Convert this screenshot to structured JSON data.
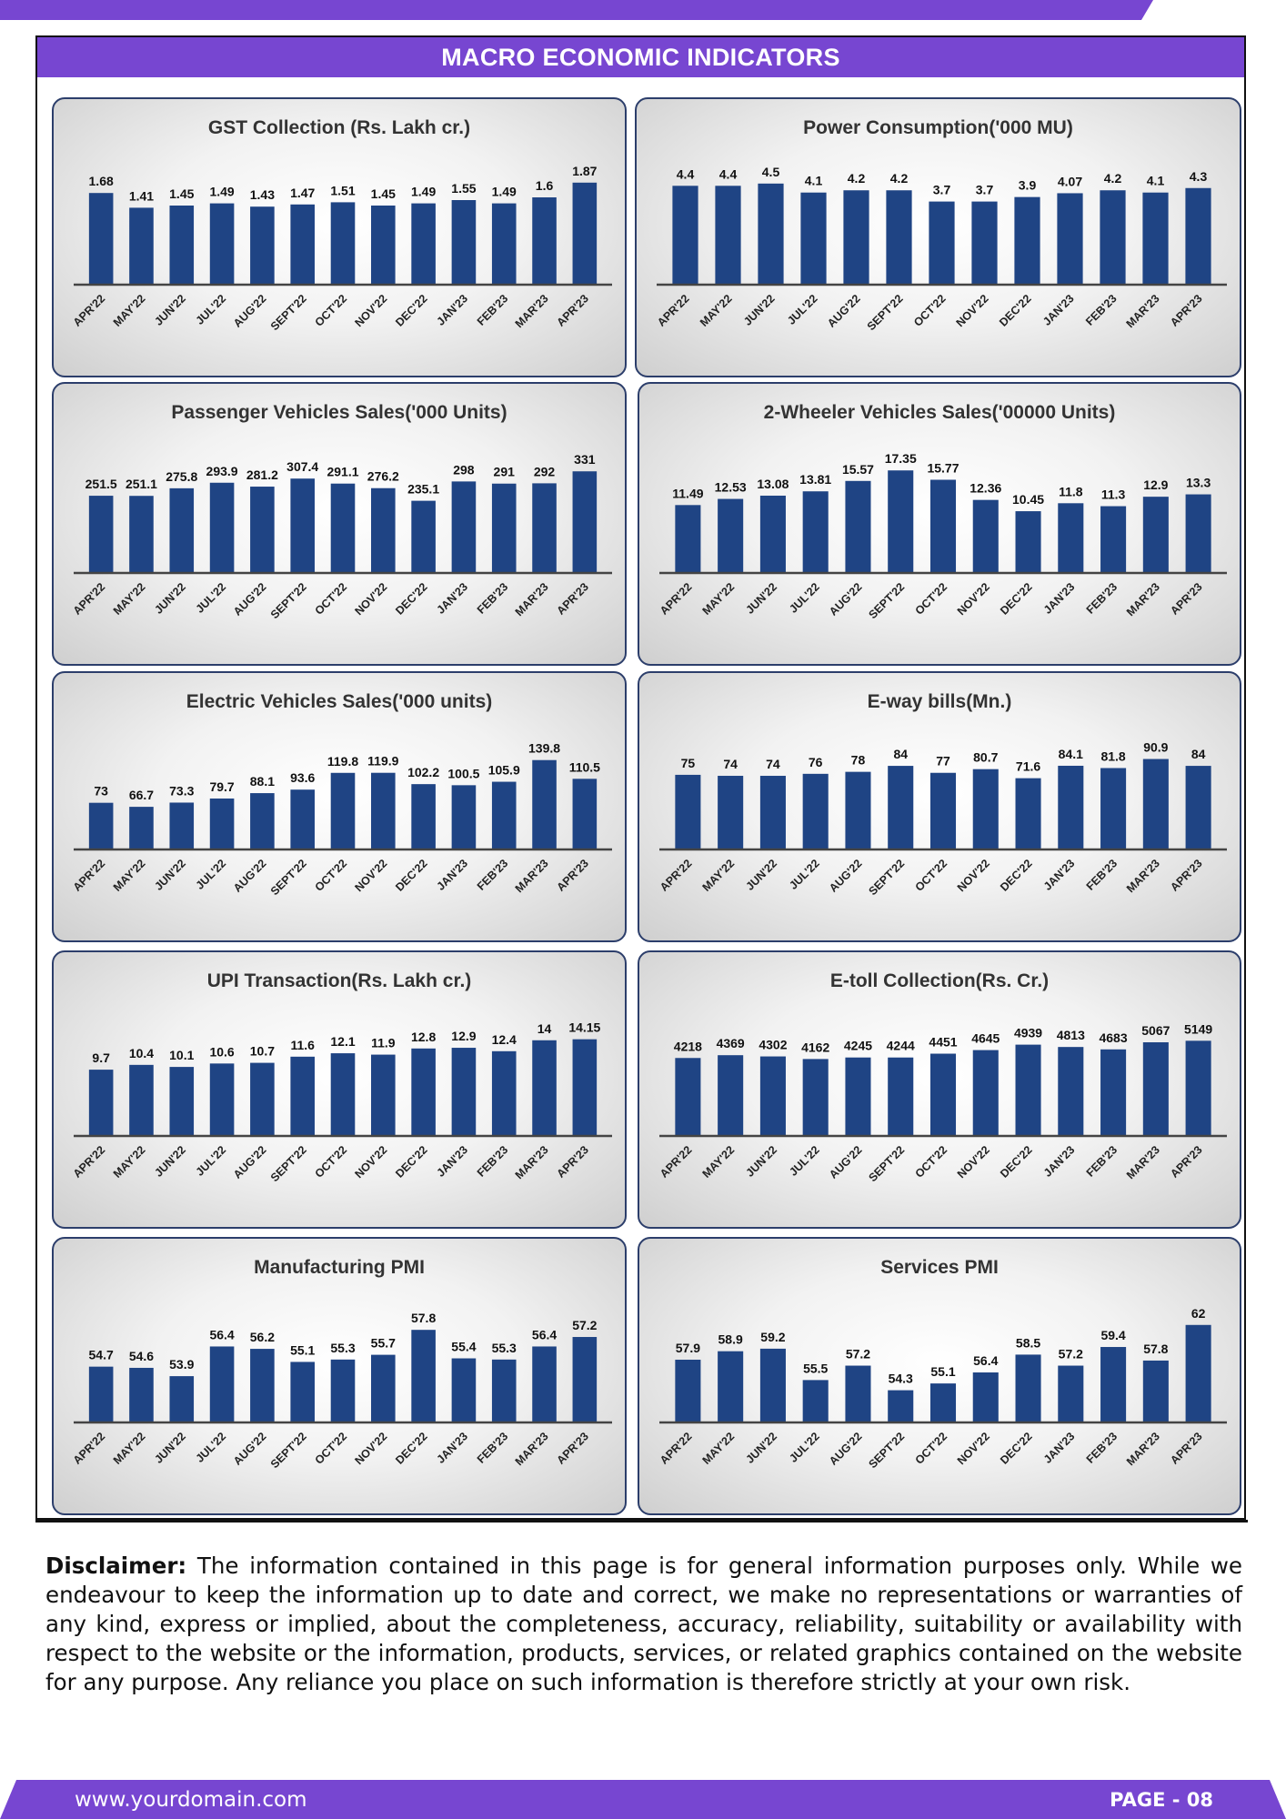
{
  "banner_title": "MACRO ECONOMIC INDICATORS",
  "colors": {
    "accent": "#7746d1",
    "bar": "#1f4484",
    "border": "#2c3e6b"
  },
  "disclaimer": {
    "lead": "Disclaimer:",
    "text": " The information contained in this page is for general information purposes only.  While we endeavour to keep the information up to date and correct, we make no representations or warranties of any kind, express or implied, about the completeness, accuracy, reliability, suitability or availability with respect to the website or the information, products, services, or related graphics contained on the website for any purpose. Any reliance you place on such information is therefore strictly at your own risk."
  },
  "footer": {
    "url": "www.yourdomain.com",
    "page": "PAGE - 08"
  },
  "chart_data": [
    {
      "id": "gst",
      "type": "bar",
      "title": "GST Collection (Rs. Lakh cr.)",
      "categories": [
        "APR'22",
        "MAY'22",
        "JUN'22",
        "JUL'22",
        "AUG'22",
        "SEPT'22",
        "OCT'22",
        "NOV'22",
        "DEC'22",
        "JAN'23",
        "FEB'23",
        "MAR'23",
        "APR'23"
      ],
      "values": [
        1.68,
        1.41,
        1.45,
        1.49,
        1.43,
        1.47,
        1.51,
        1.45,
        1.49,
        1.55,
        1.49,
        1.6,
        1.87
      ],
      "labels": [
        "1.68",
        "1.41",
        "1.45",
        "1.49",
        "1.43",
        "1.47",
        "1.51",
        "1.45",
        "1.49",
        "1.55",
        "1.49",
        "1.6",
        "1.87"
      ],
      "ylim": [
        0,
        2.1
      ]
    },
    {
      "id": "power",
      "type": "bar",
      "title": "Power Consumption('000 MU)",
      "categories": [
        "APR'22",
        "MAY'22",
        "JUN'22",
        "JUL'22",
        "AUG'22",
        "SEPT'22",
        "OCT'22",
        "NOV'22",
        "DEC'22",
        "JAN'23",
        "FEB'23",
        "MAR'23",
        "APR'23"
      ],
      "values": [
        4.4,
        4.4,
        4.5,
        4.1,
        4.2,
        4.2,
        3.7,
        3.7,
        3.9,
        4.07,
        4.2,
        4.1,
        4.3
      ],
      "labels": [
        "4.4",
        "4.4",
        "4.5",
        "4.1",
        "4.2",
        "4.2",
        "3.7",
        "3.7",
        "3.9",
        "4.07",
        "4.2",
        "4.1",
        "4.3"
      ],
      "ylim": [
        0,
        5.1
      ]
    },
    {
      "id": "pv",
      "type": "bar",
      "title": "Passenger Vehicles Sales('000 Units)",
      "categories": [
        "APR'22",
        "MAY'22",
        "JUN'22",
        "JUL'22",
        "AUG'22",
        "SEPT'22",
        "OCT'22",
        "NOV'22",
        "DEC'22",
        "JAN'23",
        "FEB'23",
        "MAR'23",
        "APR'23"
      ],
      "values": [
        251.5,
        251.1,
        275.8,
        293.9,
        281.2,
        307.4,
        291.1,
        276.2,
        235.1,
        298,
        291,
        292,
        331
      ],
      "labels": [
        "251.5",
        "251.1",
        "275.8",
        "293.9",
        "281.2",
        "307.4",
        "291.1",
        "276.2",
        "235.1",
        "298",
        "291",
        "292",
        "331"
      ],
      "ylim": [
        0,
        385
      ]
    },
    {
      "id": "twowheeler",
      "type": "bar",
      "title": "2-Wheeler Vehicles Sales('00000 Units)",
      "categories": [
        "APR'22",
        "MAY'22",
        "JUN'22",
        "JUL'22",
        "AUG'22",
        "SEPT'22",
        "OCT'22",
        "NOV'22",
        "DEC'22",
        "JAN'23",
        "FEB'23",
        "MAR'23",
        "APR'23"
      ],
      "values": [
        11.49,
        12.53,
        13.08,
        13.81,
        15.57,
        17.35,
        15.77,
        12.36,
        10.45,
        11.8,
        11.3,
        12.9,
        13.3
      ],
      "labels": [
        "11.49",
        "12.53",
        "13.08",
        "13.81",
        "15.57",
        "17.35",
        "15.77",
        "12.36",
        "10.45",
        "11.8",
        "11.3",
        "12.9",
        "13.3"
      ],
      "ylim": [
        0,
        20
      ]
    },
    {
      "id": "ev",
      "type": "bar",
      "title": "Electric Vehicles Sales('000 units)",
      "categories": [
        "APR'22",
        "MAY'22",
        "JUN'22",
        "JUL'22",
        "AUG'22",
        "SEPT'22",
        "OCT'22",
        "NOV'22",
        "DEC'22",
        "JAN'23",
        "FEB'23",
        "MAR'23",
        "APR'23"
      ],
      "values": [
        73,
        66.7,
        73.3,
        79.7,
        88.1,
        93.6,
        119.8,
        119.9,
        102.2,
        100.5,
        105.9,
        139.8,
        110.5
      ],
      "labels": [
        "73",
        "66.7",
        "73.3",
        "79.7",
        "88.1",
        "93.6",
        "119.8",
        "119.9",
        "102.2",
        "100.5",
        "105.9",
        "139.8",
        "110.5"
      ],
      "ylim": [
        0,
        165
      ]
    },
    {
      "id": "eway",
      "type": "bar",
      "title": "E-way bills(Mn.)",
      "categories": [
        "APR'22",
        "MAY'22",
        "JUN'22",
        "JUL'22",
        "AUG'22",
        "SEPT'22",
        "OCT'22",
        "NOV'22",
        "DEC'22",
        "JAN'23",
        "FEB'23",
        "MAR'23",
        "APR'23"
      ],
      "values": [
        75,
        74,
        74,
        76,
        78,
        84,
        77,
        80.7,
        71.6,
        84.1,
        81.8,
        90.9,
        84
      ],
      "labels": [
        "75",
        "74",
        "74",
        "76",
        "78",
        "84",
        "77",
        "80.7",
        "71.6",
        "84.1",
        "81.8",
        "90.9",
        "84"
      ],
      "ylim": [
        0,
        106
      ]
    },
    {
      "id": "upi",
      "type": "bar",
      "title": "UPI Transaction(Rs. Lakh cr.)",
      "categories": [
        "APR'22",
        "MAY'22",
        "JUN'22",
        "JUL'22",
        "AUG'22",
        "SEPT'22",
        "OCT'22",
        "NOV'22",
        "DEC'22",
        "JAN'23",
        "FEB'23",
        "MAR'23",
        "APR'23"
      ],
      "values": [
        9.7,
        10.4,
        10.1,
        10.6,
        10.7,
        11.6,
        12.1,
        11.9,
        12.8,
        12.9,
        12.4,
        14,
        14.15
      ],
      "labels": [
        "9.7",
        "10.4",
        "10.1",
        "10.6",
        "10.7",
        "11.6",
        "12.1",
        "11.9",
        "12.8",
        "12.9",
        "12.4",
        "14",
        "14.15"
      ],
      "ylim": [
        0,
        16.5
      ]
    },
    {
      "id": "etoll",
      "type": "bar",
      "title": "E-toll Collection(Rs. Cr.)",
      "categories": [
        "APR'22",
        "MAY'22",
        "JUN'22",
        "JUL'22",
        "AUG'22",
        "SEPT'22",
        "OCT'22",
        "NOV'22",
        "DEC'22",
        "JAN'23",
        "FEB'23",
        "MAR'23",
        "APR'23"
      ],
      "values": [
        4218,
        4369,
        4302,
        4162,
        4245,
        4244,
        4451,
        4645,
        4939,
        4813,
        4683,
        5067,
        5149
      ],
      "labels": [
        "4218",
        "4369",
        "4302",
        "4162",
        "4245",
        "4244",
        "4451",
        "4645",
        "4939",
        "4813",
        "4683",
        "5067",
        "5149"
      ],
      "ylim": [
        0,
        6100
      ]
    },
    {
      "id": "mpmi",
      "type": "bar",
      "title": "Manufacturing PMI",
      "categories": [
        "APR'22",
        "MAY'22",
        "JUN'22",
        "JUL'22",
        "AUG'22",
        "SEPT'22",
        "OCT'22",
        "NOV'22",
        "DEC'22",
        "JAN'23",
        "FEB'23",
        "MAR'23",
        "APR'23"
      ],
      "values": [
        54.7,
        54.6,
        53.9,
        56.4,
        56.2,
        55.1,
        55.3,
        55.7,
        57.8,
        55.4,
        55.3,
        56.4,
        57.2
      ],
      "labels": [
        "54.7",
        "54.6",
        "53.9",
        "56.4",
        "56.2",
        "55.1",
        "55.3",
        "55.7",
        "57.8",
        "55.4",
        "55.3",
        "56.4",
        "57.2"
      ],
      "ylim": [
        50,
        59.5
      ]
    },
    {
      "id": "spmi",
      "type": "bar",
      "title": "Services PMI",
      "categories": [
        "APR'22",
        "MAY'22",
        "JUN'22",
        "JUL'22",
        "AUG'22",
        "SEPT'22",
        "OCT'22",
        "NOV'22",
        "DEC'22",
        "JAN'23",
        "FEB'23",
        "MAR'23",
        "APR'23"
      ],
      "values": [
        57.9,
        58.9,
        59.2,
        55.5,
        57.2,
        54.3,
        55.1,
        56.4,
        58.5,
        57.2,
        59.4,
        57.8,
        62
      ],
      "labels": [
        "57.9",
        "58.9",
        "59.2",
        "55.5",
        "57.2",
        "54.3",
        "55.1",
        "56.4",
        "58.5",
        "57.2",
        "59.4",
        "57.8",
        "62"
      ],
      "ylim": [
        50.5,
        63.8
      ]
    }
  ]
}
